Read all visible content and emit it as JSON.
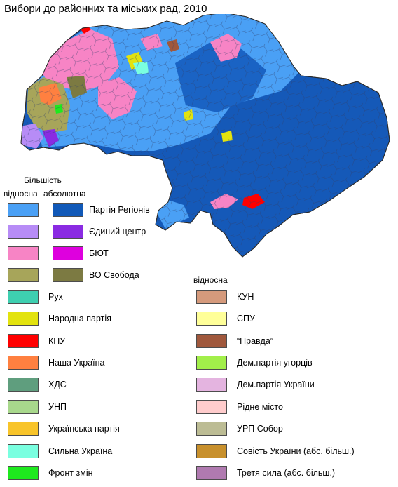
{
  "title": "Вибори до районних та міських рад, 2010",
  "legend": {
    "header_majority": "Більшість",
    "header_relative": "відносна",
    "header_absolute": "абсолютна",
    "header_relative_right": "відносна",
    "paired": [
      {
        "label": "Партія Регіонів",
        "relative_color": "#4aa0f5",
        "absolute_color": "#1159b8"
      },
      {
        "label": "Єдиний центр",
        "relative_color": "#b78cf6",
        "absolute_color": "#8a2be2"
      },
      {
        "label": "БЮТ",
        "relative_color": "#f784c5",
        "absolute_color": "#de00de"
      },
      {
        "label": "ВО Свобода",
        "relative_color": "#a7a55a",
        "absolute_color": "#7c7a42"
      }
    ],
    "left_single": [
      {
        "label": "Рух",
        "color": "#3ecfb0"
      },
      {
        "label": "Народна партія",
        "color": "#e3e30e"
      },
      {
        "label": "КПУ",
        "color": "#ff0000"
      },
      {
        "label": "Наша Україна",
        "color": "#ff8040"
      },
      {
        "label": "ХДС",
        "color": "#5f9e7e"
      },
      {
        "label": "УНП",
        "color": "#a8d88c"
      },
      {
        "label": "Українська партія",
        "color": "#f8c42a"
      },
      {
        "label": "Сильна Україна",
        "color": "#7affe0"
      },
      {
        "label": "Фронт змін",
        "color": "#1ee91e"
      }
    ],
    "right_single": [
      {
        "label": "КУН",
        "color": "#d59a7c"
      },
      {
        "label": "СПУ",
        "color": "#ffff99"
      },
      {
        "label": "“Правда”",
        "color": "#a0583c"
      },
      {
        "label": "Дем.партія угорців",
        "color": "#a2ef4a"
      },
      {
        "label": "Дем.партія України",
        "color": "#e4b4e0"
      },
      {
        "label": "Рідне місто",
        "color": "#ffcccc"
      },
      {
        "label": "УРП Собор",
        "color": "#bcbc94"
      },
      {
        "label": "Совість України (абс. більш.)",
        "color": "#c8902c"
      },
      {
        "label": "Третя сила (абс. більш.)",
        "color": "#b07ab0"
      }
    ]
  }
}
